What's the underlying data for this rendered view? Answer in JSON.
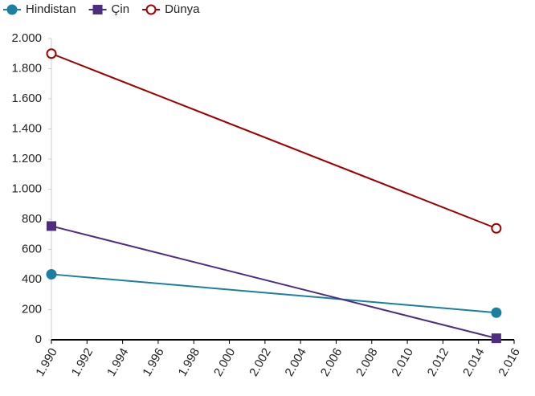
{
  "chart_data": {
    "type": "line",
    "x": [
      1990,
      2015
    ],
    "series": [
      {
        "name": "Hindistan",
        "color": "#1a7fa0",
        "marker": "circle",
        "values": [
          435,
          180
        ]
      },
      {
        "name": "Çin",
        "color": "#4e2d7f",
        "marker": "square",
        "values": [
          755,
          10
        ]
      },
      {
        "name": "Dünya",
        "color": "#a00000",
        "marker": "hollow-circle",
        "values": [
          1900,
          740
        ]
      }
    ],
    "xlim": [
      1990,
      2016
    ],
    "xticks": [
      {
        "value": 1990,
        "label": "1.990"
      },
      {
        "value": 1992,
        "label": "1.992"
      },
      {
        "value": 1994,
        "label": "1.994"
      },
      {
        "value": 1996,
        "label": "1.996"
      },
      {
        "value": 1998,
        "label": "1.998"
      },
      {
        "value": 2000,
        "label": "2.000"
      },
      {
        "value": 2002,
        "label": "2.002"
      },
      {
        "value": 2004,
        "label": "2.004"
      },
      {
        "value": 2006,
        "label": "2.006"
      },
      {
        "value": 2008,
        "label": "2.008"
      },
      {
        "value": 2010,
        "label": "2.010"
      },
      {
        "value": 2012,
        "label": "2.012"
      },
      {
        "value": 2014,
        "label": "2.014"
      },
      {
        "value": 2016,
        "label": "2.016"
      }
    ],
    "ylim": [
      0,
      2000
    ],
    "yticks": [
      0,
      {
        "value": 200,
        "label": "200"
      },
      {
        "value": 400,
        "label": "400"
      },
      {
        "value": 600,
        "label": "600"
      },
      {
        "value": 800,
        "label": "800"
      },
      {
        "value": 1000,
        "label": "1.000"
      },
      {
        "value": 1200,
        "label": "1.200"
      },
      {
        "value": 1400,
        "label": "1.400"
      },
      {
        "value": 1600,
        "label": "1.600"
      },
      {
        "value": 1800,
        "label": "1.800"
      },
      {
        "value": 2000,
        "label": "2.000"
      }
    ],
    "grid": false,
    "legend": "top-left"
  }
}
